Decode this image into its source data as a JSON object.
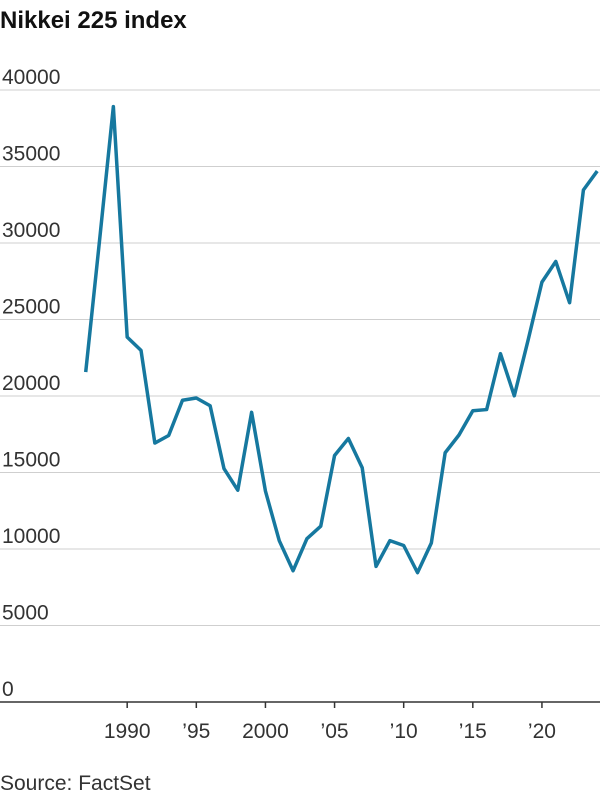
{
  "chart_data": {
    "type": "line",
    "title": "Nikkei 225 index",
    "source": "Source: FactSet",
    "x": [
      1987,
      1988,
      1989,
      1990,
      1991,
      1992,
      1993,
      1994,
      1995,
      1996,
      1997,
      1998,
      1999,
      2000,
      2001,
      2002,
      2003,
      2004,
      2005,
      2006,
      2007,
      2008,
      2009,
      2010,
      2011,
      2012,
      2013,
      2014,
      2015,
      2016,
      2017,
      2018,
      2019,
      2020,
      2021,
      2022,
      2023,
      2024
    ],
    "series": [
      {
        "name": "Nikkei 225",
        "color": "#16789f",
        "values": [
          21564,
          30159,
          38916,
          23849,
          22984,
          16925,
          17417,
          19723,
          19868,
          19361,
          15259,
          13842,
          18934,
          13786,
          10543,
          8579,
          10677,
          11489,
          16111,
          17226,
          15308,
          8860,
          10546,
          10229,
          8455,
          10395,
          16291,
          17451,
          19034,
          19114,
          22765,
          20015,
          23657,
          27444,
          28792,
          26095,
          33464,
          34700
        ]
      }
    ],
    "xlim": [
      1980.8,
      2024.2
    ],
    "xticks": [
      1990,
      {
        "value": 1995,
        "label": "’95"
      },
      2000,
      {
        "value": 2005,
        "label": "’05"
      },
      {
        "value": 2010,
        "label": "’10"
      },
      {
        "value": 2015,
        "label": "’15"
      },
      {
        "value": 2020,
        "label": "’20"
      }
    ],
    "ylim": [
      0,
      40000
    ],
    "yticks": [
      0,
      5000,
      10000,
      15000,
      20000,
      25000,
      30000,
      35000,
      40000
    ],
    "grid": true
  }
}
